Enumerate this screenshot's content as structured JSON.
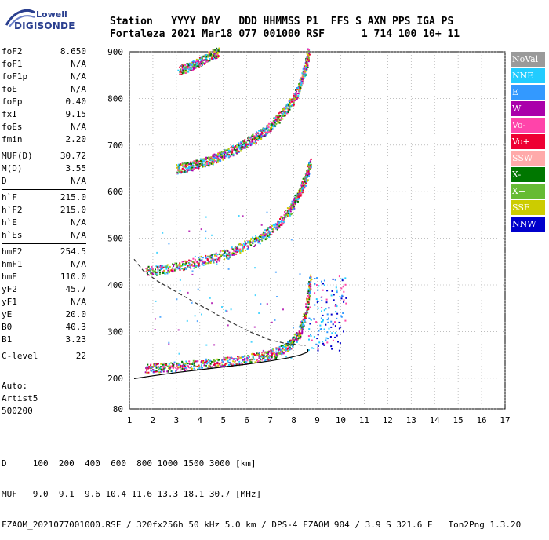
{
  "logo": {
    "line1": "Lowell",
    "line2": "DIGISONDE"
  },
  "header": {
    "line1": "Station   YYYY DAY   DDD HHMMSS P1  FFS S AXN PPS IGA PS",
    "line2": "Fortaleza 2021 Mar18 077 001000 RSF      1 714 100 10+ 11"
  },
  "params": [
    {
      "label": "foF2",
      "value": "8.650"
    },
    {
      "label": "foF1",
      "value": "N/A"
    },
    {
      "label": "foF1p",
      "value": "N/A"
    },
    {
      "label": "foE",
      "value": "N/A"
    },
    {
      "label": "foEp",
      "value": "0.40"
    },
    {
      "label": "fxI",
      "value": "9.15"
    },
    {
      "label": "foEs",
      "value": "N/A"
    },
    {
      "label": "fmin",
      "value": "2.20"
    },
    {
      "label": "MUF(D)",
      "value": "30.72"
    },
    {
      "label": "M(D)",
      "value": "3.55"
    },
    {
      "label": "D",
      "value": "N/A"
    },
    {
      "label": "h`F",
      "value": "215.0"
    },
    {
      "label": "h`F2",
      "value": "215.0"
    },
    {
      "label": "h`E",
      "value": "N/A"
    },
    {
      "label": "h`Es",
      "value": "N/A"
    },
    {
      "label": "hmF2",
      "value": "254.5"
    },
    {
      "label": "hmF1",
      "value": "N/A"
    },
    {
      "label": "hmE",
      "value": "110.0"
    },
    {
      "label": "yF2",
      "value": "45.7"
    },
    {
      "label": "yF1",
      "value": "N/A"
    },
    {
      "label": "yE",
      "value": "20.0"
    },
    {
      "label": "B0",
      "value": "40.3"
    },
    {
      "label": "B1",
      "value": "3.23"
    },
    {
      "label": "C-level",
      "value": "22"
    }
  ],
  "auto": {
    "line1": "Auto:",
    "line2": "Artist5",
    "line3": "500200"
  },
  "legend": [
    {
      "label": "NoVal",
      "color": "#9a9a9a"
    },
    {
      "label": "NNE",
      "color": "#22ccff"
    },
    {
      "label": "E",
      "color": "#3399ff"
    },
    {
      "label": "W",
      "color": "#aa00aa"
    },
    {
      "label": "Vo-",
      "color": "#ff44aa"
    },
    {
      "label": "Vo+",
      "color": "#ee0033"
    },
    {
      "label": "SSW",
      "color": "#ffaaaa"
    },
    {
      "label": "X-",
      "color": "#007700"
    },
    {
      "label": "X+",
      "color": "#66bb33"
    },
    {
      "label": "SSE",
      "color": "#cccc00"
    },
    {
      "label": "NNW",
      "color": "#0000cc"
    }
  ],
  "footer": {
    "line1": "D     100  200  400  600  800 1000 1500 3000 [km]",
    "line2": "MUF   9.0  9.1  9.6 10.4 11.6 13.3 18.1 30.7 [MHz]",
    "line3": "FZAOM_2021077001000.RSF / 320fx256h 50 kHz 5.0 km / DPS-4 FZAOM 904 / 3.9 S 321.6 E   Ion2Png 1.3.20"
  },
  "chart_data": {
    "type": "scatter",
    "x_ticks": [
      "1",
      "2",
      "3",
      "4",
      "5",
      "6",
      "7",
      "8",
      "9",
      "10",
      "11",
      "12",
      "13",
      "14",
      "15",
      "16",
      "17"
    ],
    "y_ticks": [
      "80",
      "200",
      "300",
      "400",
      "500",
      "600",
      "700",
      "800",
      "900"
    ],
    "xlim": [
      1,
      17
    ],
    "ylim": [
      80,
      900
    ],
    "grid": true,
    "traces": [
      {
        "color": "Vo-",
        "x": [
          1.7,
          2.5,
          3.5,
          4.5,
          5.5,
          6.5,
          7.2,
          7.8,
          8.2,
          8.5,
          8.7
        ],
        "y": [
          222,
          224,
          228,
          232,
          238,
          246,
          255,
          270,
          295,
          340,
          420
        ]
      },
      {
        "color": "Vo-",
        "x": [
          1.7,
          2.5,
          3.5,
          4.5,
          5.5,
          6.5,
          7.2,
          7.8,
          8.2,
          8.5,
          8.7
        ],
        "y": [
          430,
          435,
          445,
          458,
          475,
          500,
          525,
          560,
          595,
          630,
          665
        ]
      },
      {
        "color": "Vo-",
        "x": [
          3,
          3.5,
          4,
          4.5,
          5,
          5.5,
          6,
          6.5,
          7,
          7.5,
          8,
          8.3,
          8.5,
          8.6
        ],
        "y": [
          650,
          655,
          662,
          670,
          680,
          692,
          706,
          722,
          742,
          768,
          800,
          835,
          870,
          900
        ]
      },
      {
        "color": "Vo-",
        "x": [
          3.1,
          3.6,
          4,
          4.5,
          4.8
        ],
        "y": [
          862,
          870,
          880,
          895,
          900
        ]
      }
    ],
    "profile_solid": {
      "x": [
        1.2,
        2,
        3,
        4,
        5,
        6,
        7,
        7.8,
        8.3,
        8.6,
        8.6
      ],
      "y": [
        198,
        205,
        212,
        218,
        224,
        230,
        237,
        244,
        250,
        256,
        262
      ]
    },
    "profile_dashed": {
      "x": [
        1.2,
        1.6,
        2.2,
        3,
        3.8,
        4.6,
        5.4,
        6.2,
        7,
        7.6,
        8.1,
        8.5
      ],
      "y": [
        455,
        430,
        408,
        385,
        362,
        340,
        318,
        298,
        282,
        275,
        272,
        270
      ]
    }
  }
}
